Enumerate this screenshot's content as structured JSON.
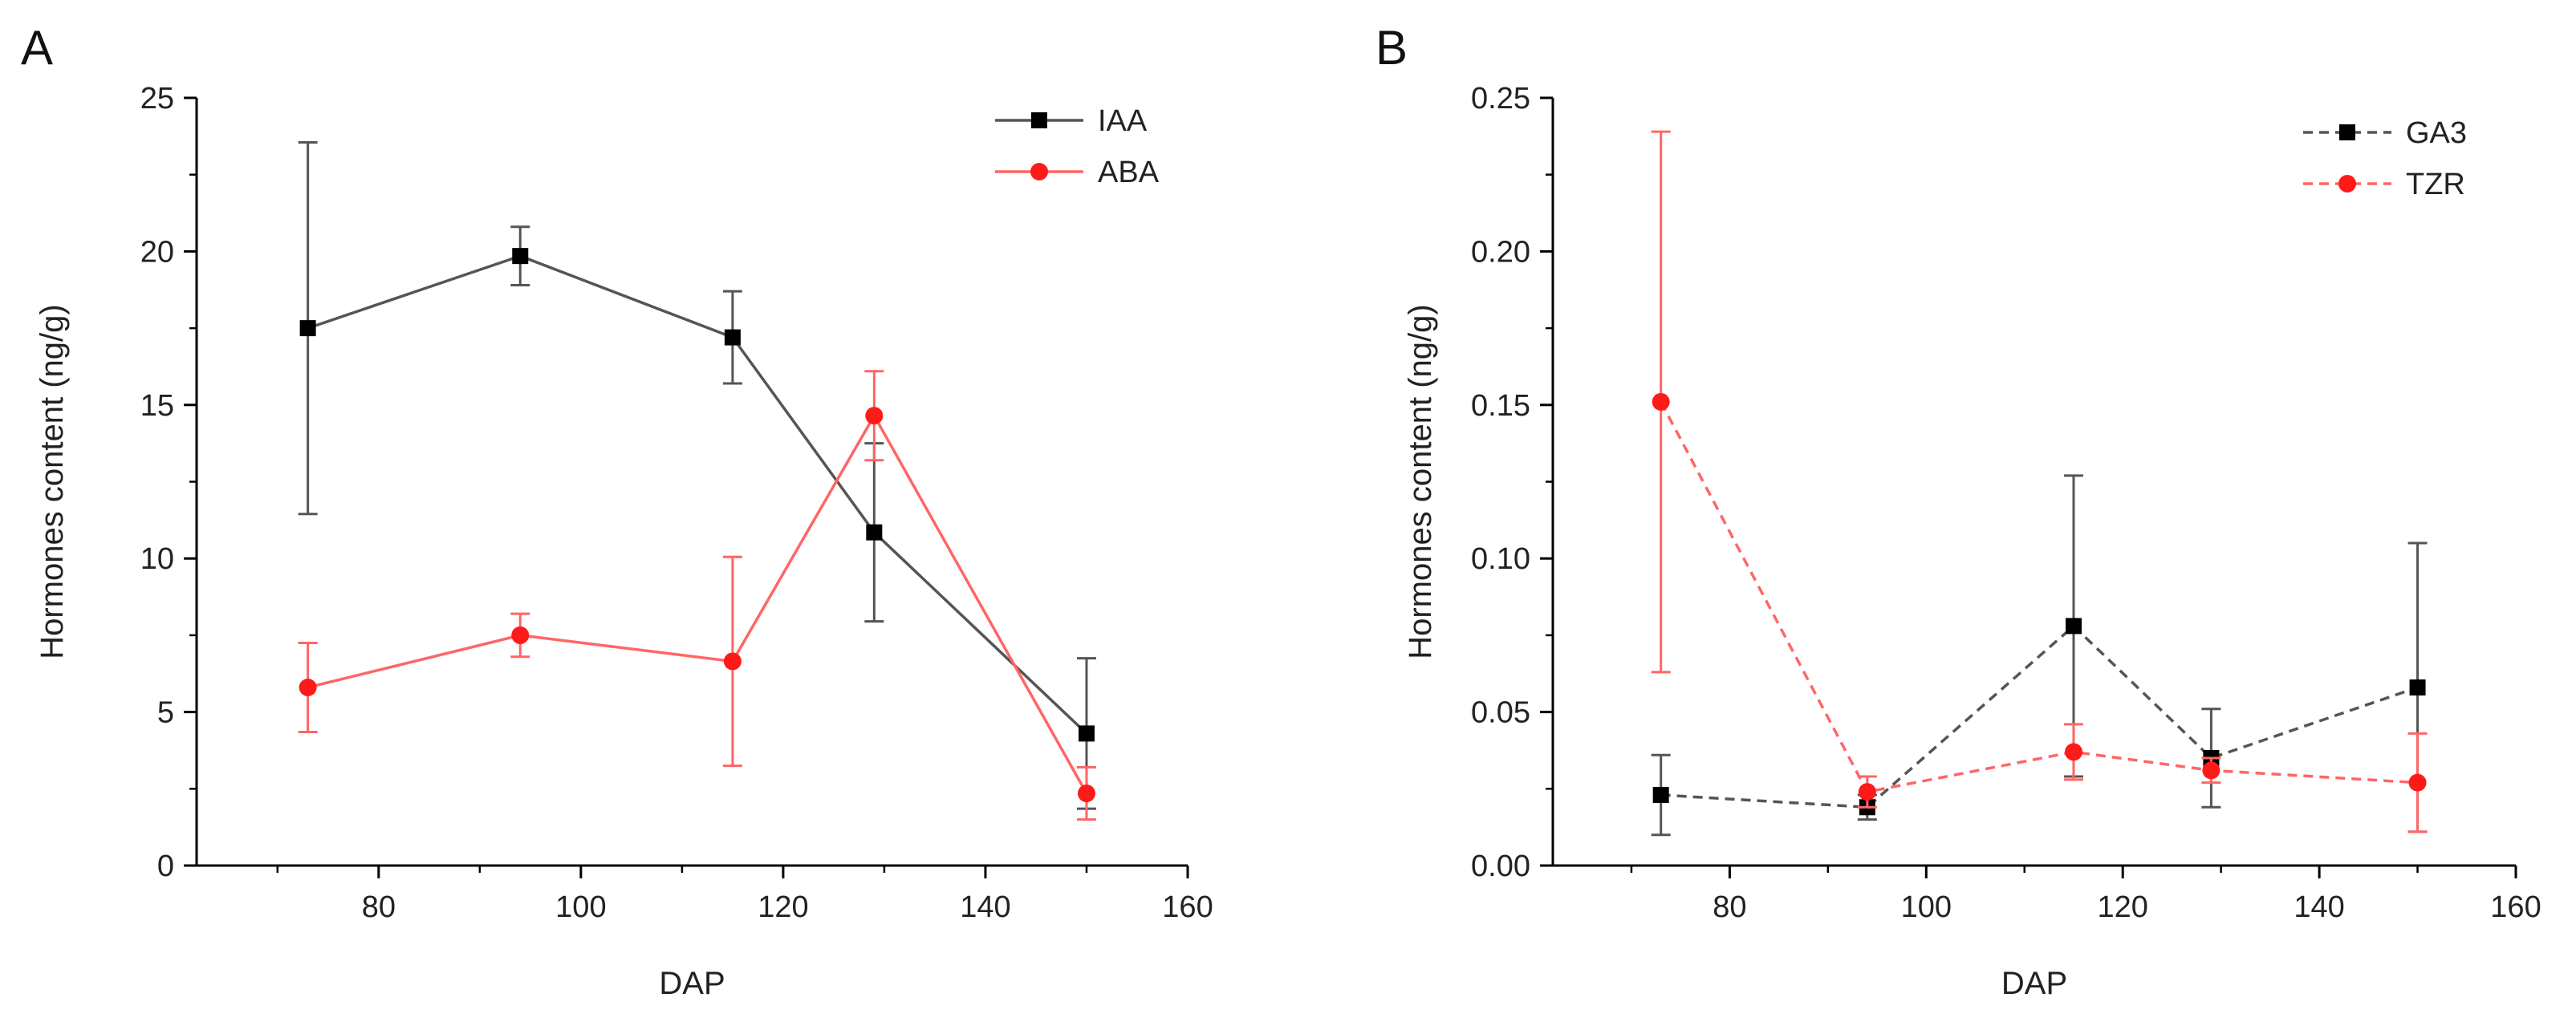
{
  "chart_data": [
    {
      "panel": "A",
      "type": "line",
      "title": "",
      "xlabel": "DAP",
      "ylabel": "Hormones content (ng/g)",
      "xlim": [
        62,
        160
      ],
      "ylim": [
        0,
        25
      ],
      "xticks": [
        80,
        100,
        120,
        140,
        160
      ],
      "xtick_labels": [
        "80",
        "100",
        "120",
        "140",
        "160"
      ],
      "yticks": [
        0,
        5,
        10,
        15,
        20,
        25
      ],
      "ytick_labels": [
        "0",
        "5",
        "10",
        "15",
        "20",
        "25"
      ],
      "legend_position": "top-right",
      "x": [
        73,
        94,
        115,
        129,
        150
      ],
      "series": [
        {
          "name": "IAA",
          "color": "#000000",
          "line_color": "#555555",
          "dashed": false,
          "marker": "square",
          "values": [
            17.5,
            19.85,
            17.2,
            10.85,
            4.3
          ],
          "errors": [
            6.05,
            0.95,
            1.5,
            2.9,
            2.45
          ]
        },
        {
          "name": "ABA",
          "color": "#ff1a1a",
          "line_color": "#ff6666",
          "dashed": false,
          "marker": "circle",
          "values": [
            5.8,
            7.5,
            6.65,
            14.65,
            2.35
          ],
          "errors": [
            1.45,
            0.7,
            3.4,
            1.45,
            0.85
          ]
        }
      ]
    },
    {
      "panel": "B",
      "type": "line",
      "title": "",
      "xlabel": "DAP",
      "ylabel": "Hormones content (ng/g)",
      "xlim": [
        62,
        160
      ],
      "ylim": [
        0,
        0.25
      ],
      "xticks": [
        80,
        100,
        120,
        140,
        160
      ],
      "xtick_labels": [
        "80",
        "100",
        "120",
        "140",
        "160"
      ],
      "yticks": [
        0,
        0.05,
        0.1,
        0.15,
        0.2,
        0.25
      ],
      "ytick_labels": [
        "0.00",
        "0.05",
        "0.10",
        "0.15",
        "0.20",
        "0.25"
      ],
      "legend_position": "top-right",
      "x": [
        73,
        94,
        115,
        129,
        150
      ],
      "series": [
        {
          "name": "GA3",
          "color": "#000000",
          "line_color": "#555555",
          "dashed": true,
          "marker": "square",
          "values": [
            0.023,
            0.019,
            0.078,
            0.035,
            0.058
          ],
          "errors": [
            0.013,
            0.004,
            0.049,
            0.016,
            0.047
          ]
        },
        {
          "name": "TZR",
          "color": "#ff1a1a",
          "line_color": "#ff6666",
          "dashed": true,
          "marker": "circle",
          "values": [
            0.151,
            0.024,
            0.037,
            0.031,
            0.027
          ],
          "errors": [
            0.088,
            0.005,
            0.009,
            0.004,
            0.016
          ]
        }
      ]
    }
  ]
}
